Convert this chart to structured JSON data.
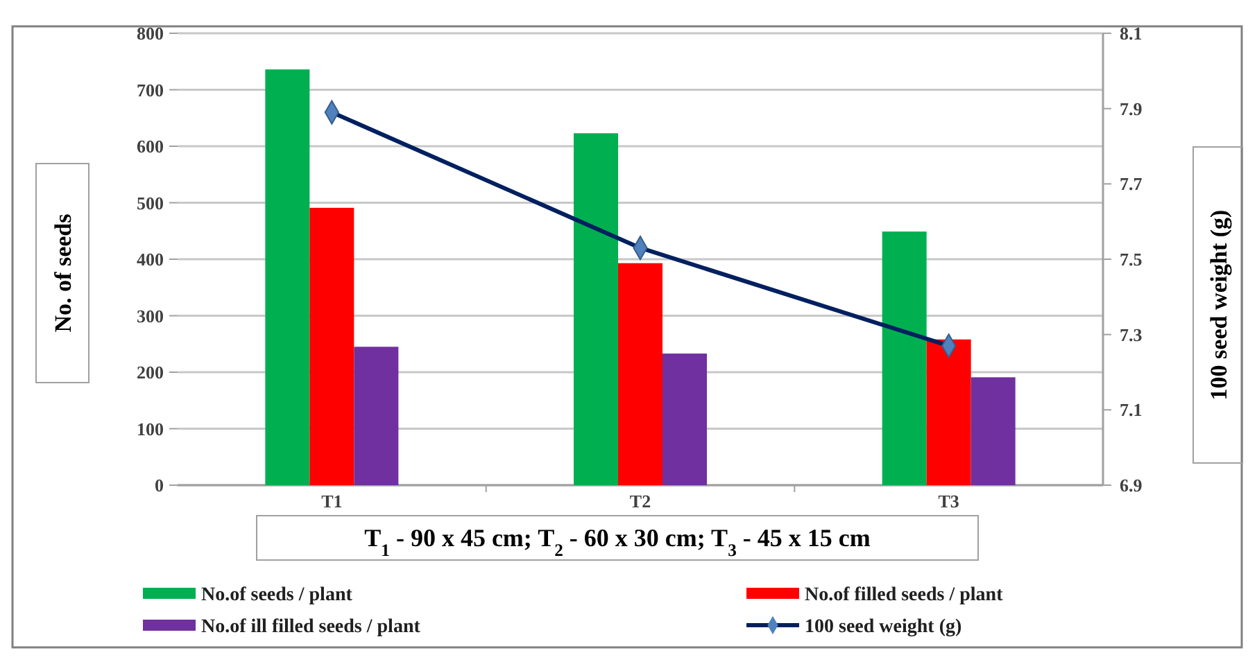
{
  "chart_data": {
    "type": "bar",
    "categories": [
      "T1",
      "T2",
      "T3"
    ],
    "ylabel": "No. of seeds",
    "y2label": "100 seed weight (g)",
    "ylim": [
      0,
      800
    ],
    "yticks": [
      0,
      100,
      200,
      300,
      400,
      500,
      600,
      700,
      800
    ],
    "y2lim": [
      6.9,
      8.1
    ],
    "y2ticks": [
      6.9,
      7.1,
      7.3,
      7.5,
      7.7,
      7.9,
      8.1
    ],
    "grid": "y",
    "legend": "bottom",
    "annotations": [
      "T$_{1}$ - 90 x 45 cm;  T$_{2}$ - 60 x 30 cm; T$_{3}$ - 45 x 15 cm"
    ],
    "series": [
      {
        "name": "No.of seeds / plant",
        "color": "#00b050",
        "values": [
          736,
          623,
          449
        ]
      },
      {
        "name": "No.of filled seeds / plant",
        "color": "#ff0000",
        "values": [
          491,
          393,
          258
        ]
      },
      {
        "name": "No.of ill filled seeds / plant",
        "color": "#7030a0",
        "values": [
          245,
          233,
          191
        ]
      },
      {
        "name": "100 seed weight (g)",
        "type": "line",
        "axis": "y2",
        "color": "#002060",
        "marker": "diamond",
        "line_style": "solid",
        "values": [
          7.89,
          7.53,
          7.27
        ]
      }
    ]
  }
}
